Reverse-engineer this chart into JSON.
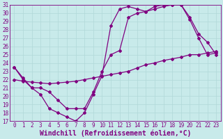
{
  "xlabel": "Windchill (Refroidissement éolien,°C)",
  "bg_color": "#c8eaea",
  "grid_color": "#b0d8d8",
  "line_color": "#800080",
  "xlim": [
    -0.5,
    23.5
  ],
  "ylim": [
    17,
    31
  ],
  "xticks": [
    0,
    1,
    2,
    3,
    4,
    5,
    6,
    7,
    8,
    9,
    10,
    11,
    12,
    13,
    14,
    15,
    16,
    17,
    18,
    19,
    20,
    21,
    22,
    23
  ],
  "yticks": [
    17,
    18,
    19,
    20,
    21,
    22,
    23,
    24,
    25,
    26,
    27,
    28,
    29,
    30,
    31
  ],
  "line1_x": [
    0,
    1,
    2,
    3,
    4,
    5,
    6,
    7,
    8,
    9,
    10,
    11,
    12,
    13,
    14,
    15,
    16,
    17,
    18,
    19,
    20,
    21,
    22,
    23
  ],
  "line1_y": [
    23.5,
    22.2,
    21.0,
    20.2,
    18.5,
    18.0,
    17.5,
    17.0,
    18.0,
    20.2,
    22.5,
    28.5,
    30.5,
    30.8,
    30.5,
    30.2,
    30.8,
    31.0,
    31.0,
    31.0,
    29.2,
    27.0,
    25.0,
    25.2
  ],
  "line2_x": [
    0,
    1,
    2,
    3,
    4,
    5,
    6,
    7,
    8,
    9,
    10,
    11,
    12,
    13,
    14,
    15,
    16,
    17,
    18,
    19,
    20,
    21,
    22,
    23
  ],
  "line2_y": [
    22.0,
    21.8,
    21.7,
    21.6,
    21.5,
    21.6,
    21.7,
    21.8,
    22.0,
    22.2,
    22.4,
    22.6,
    22.8,
    23.0,
    23.4,
    23.8,
    24.0,
    24.3,
    24.5,
    24.7,
    25.0,
    25.0,
    25.2,
    25.4
  ],
  "line3_x": [
    0,
    1,
    2,
    3,
    4,
    5,
    6,
    7,
    8,
    9,
    10,
    11,
    12,
    13,
    14,
    15,
    16,
    17,
    18,
    19,
    20,
    21,
    22,
    23
  ],
  "line3_y": [
    23.5,
    22.0,
    21.0,
    21.0,
    20.5,
    19.5,
    18.5,
    18.5,
    18.5,
    20.5,
    23.0,
    25.0,
    25.5,
    29.5,
    30.0,
    30.2,
    30.5,
    30.8,
    31.0,
    31.0,
    29.5,
    27.5,
    26.5,
    25.0
  ],
  "marker": "D",
  "markersize": 2.0,
  "linewidth": 0.9,
  "xlabel_fontsize": 7,
  "tick_fontsize": 5.5
}
